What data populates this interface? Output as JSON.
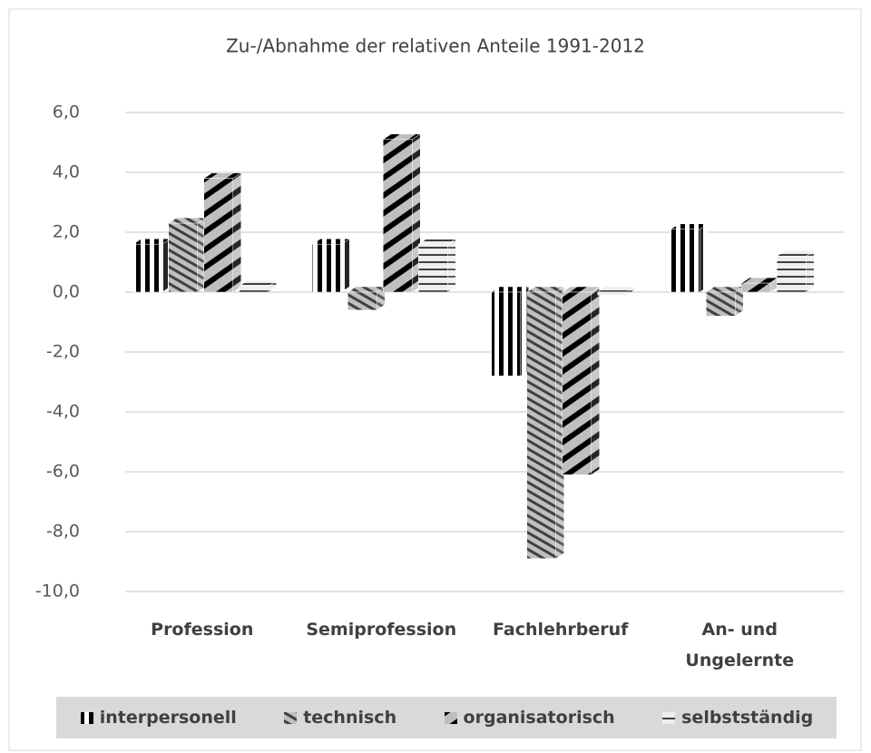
{
  "chart_data": {
    "type": "bar",
    "title": "Zu-/Abnahme der relativen Anteile 1991-2012",
    "categories": [
      "Profession",
      "Semiprofession",
      "Fachlehrberuf",
      "An- und Ungelernte"
    ],
    "series": [
      {
        "name": "interpersonell",
        "values": [
          1.6,
          1.6,
          -2.8,
          2.1
        ]
      },
      {
        "name": "technisch",
        "values": [
          2.3,
          -0.6,
          -8.9,
          -0.8
        ]
      },
      {
        "name": "organisatorisch",
        "values": [
          3.8,
          5.1,
          -6.1,
          0.3
        ]
      },
      {
        "name": "selbstständig",
        "values": [
          0.2,
          1.6,
          -0.1,
          1.2
        ]
      }
    ],
    "ylim": [
      -10,
      6
    ],
    "yticks": [
      {
        "value": -10,
        "label": "-10,0"
      },
      {
        "value": -8,
        "label": "-8,0"
      },
      {
        "value": -6,
        "label": "-6,0"
      },
      {
        "value": -4,
        "label": "-4,0"
      },
      {
        "value": -2,
        "label": "-2,0"
      },
      {
        "value": 0,
        "label": "0,0"
      },
      {
        "value": 2,
        "label": "2,0"
      },
      {
        "value": 4,
        "label": "4,0"
      },
      {
        "value": 6,
        "label": "6,0"
      }
    ],
    "grid": true
  }
}
